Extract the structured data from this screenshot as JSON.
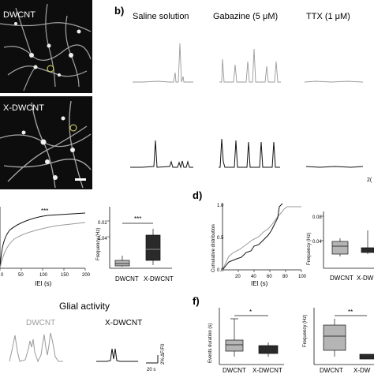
{
  "panels": {
    "b_label": "b)",
    "d_label": "d)",
    "f_label": "f)"
  },
  "micrographs": {
    "top_label": "DWCNT",
    "bottom_label": "X-DWCNT"
  },
  "traces_header": {
    "condition_1": "Saline solution",
    "condition_2": "Gabazine (5 μM)",
    "condition_3": "TTX (1 μM)",
    "scale_fragment": "2("
  },
  "panel_c_left": {
    "xlabel": "IEI (s)",
    "xticks": [
      "0",
      "50",
      "100",
      "150",
      "200"
    ],
    "significance": "***"
  },
  "panel_c_right": {
    "ylabel": "Frequency (Hz)",
    "yticks": [
      "0.04",
      "0.02"
    ],
    "categories": [
      "DWCNT",
      "X-DWCNT"
    ],
    "significance": "***"
  },
  "panel_d_left": {
    "ylabel": "Cumulative distribution",
    "xlabel": "IEI (s)",
    "yticks": [
      "1.0",
      "0.5",
      "0.0"
    ],
    "xticks": [
      "20",
      "40",
      "60",
      "80",
      "100"
    ]
  },
  "panel_d_right": {
    "ylabel": "Frequency (Hz)",
    "yticks": [
      "0.08",
      "0.04"
    ],
    "categories": [
      "DWCNT",
      "X-DW"
    ]
  },
  "glial": {
    "title": "Glial activity",
    "label_1": "DWCNT",
    "label_2": "X-DWCNT",
    "scale_x": "20 s",
    "scale_y": "2% ΔF/F0"
  },
  "panel_f_left": {
    "ylabel": "Events duration (s)",
    "categories": [
      "DWCNT",
      "X-DWCNT"
    ],
    "significance": "*"
  },
  "panel_f_right": {
    "ylabel": "Frequency (Hz)",
    "categories": [
      "DWCNT",
      "X-DW"
    ],
    "significance": "**"
  },
  "colors": {
    "grey_trace": "#9a9a9a",
    "black_trace": "#111111",
    "box_grey": "#b5b5b5",
    "box_dark": "#2a2a2a"
  }
}
